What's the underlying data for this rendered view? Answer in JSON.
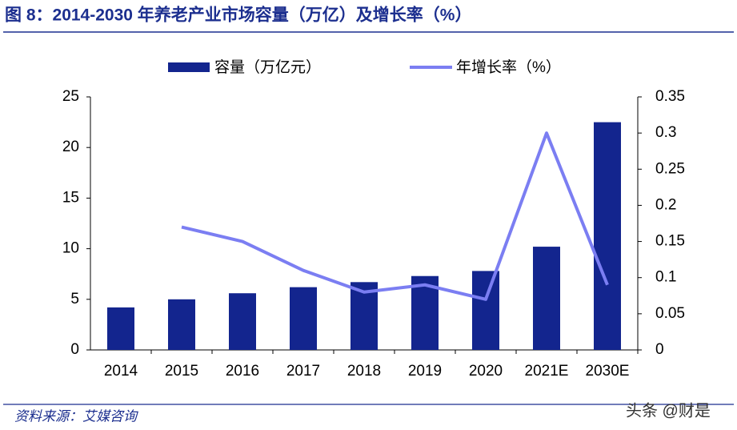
{
  "chart_data": {
    "type": "bar-line",
    "title": "图 8：2014-2030 年养老产业市场容量（万亿）及增长率（%）",
    "categories": [
      "2014",
      "2015",
      "2016",
      "2017",
      "2018",
      "2019",
      "2020",
      "2021E",
      "2030E"
    ],
    "series": [
      {
        "name": "容量（万亿元）",
        "type": "bar",
        "color": "#13258e",
        "values": [
          4.2,
          5.0,
          5.6,
          6.2,
          6.7,
          7.3,
          7.8,
          10.2,
          22.5
        ]
      },
      {
        "name": "年增长率（%）",
        "type": "line",
        "axis": "y2",
        "color": "#7b7ef2",
        "values": [
          null,
          0.17,
          0.15,
          0.11,
          0.08,
          0.09,
          0.07,
          0.3,
          0.09
        ]
      }
    ],
    "ylim": [
      0,
      25
    ],
    "yticks": [
      0,
      5,
      10,
      15,
      20,
      25
    ],
    "y2lim": [
      0,
      0.35
    ],
    "y2ticks": [
      0,
      0.05,
      0.1,
      0.15,
      0.2,
      0.25,
      0.3,
      0.35
    ],
    "legend": "top",
    "source": "资料来源：艾媒咨询",
    "watermark": "头条 @财是"
  }
}
